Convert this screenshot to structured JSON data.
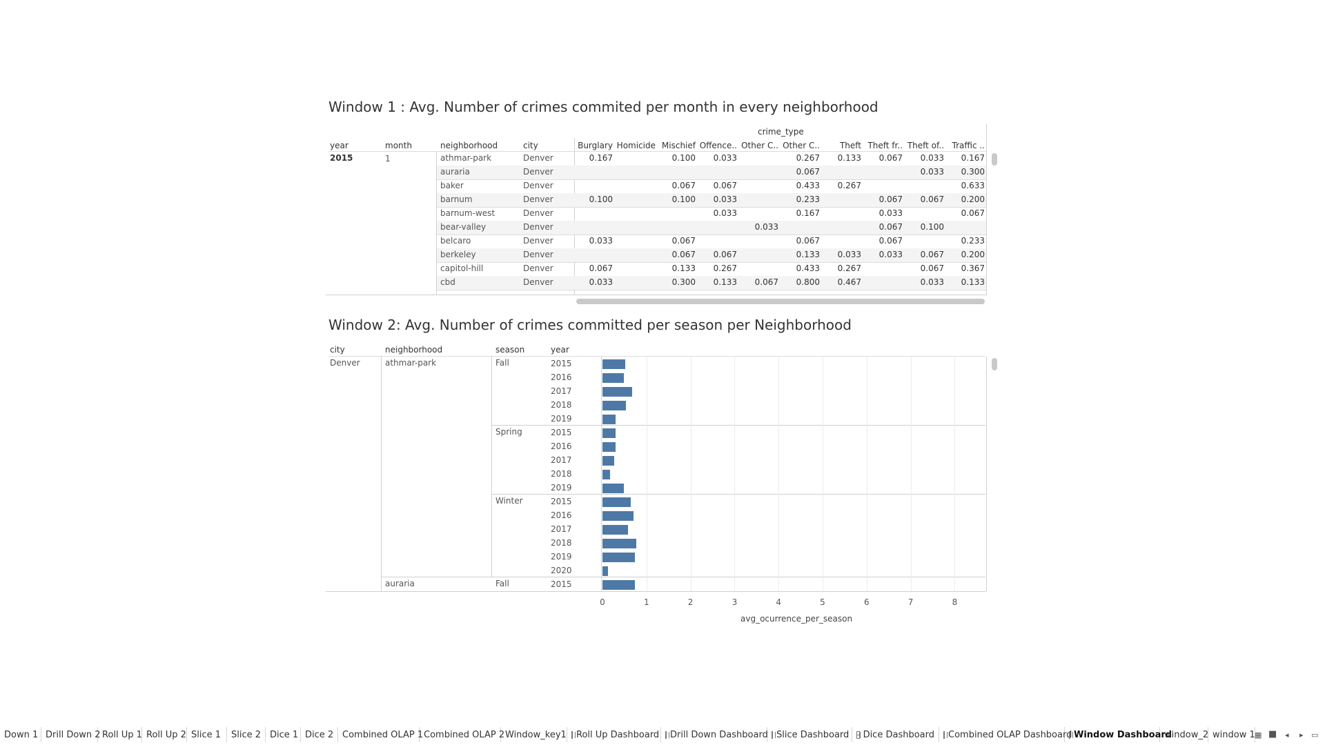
{
  "window1": {
    "title": "Window 1 : Avg. Number of crimes commited per month in every neighborhood",
    "column_group": "crime_type",
    "row_headers": [
      "year",
      "month",
      "neighborhood",
      "city"
    ],
    "crime_columns": [
      "Burglary",
      "Homicide",
      "Mischief",
      "Offence..",
      "Other C..",
      "Other C..",
      "Theft",
      "Theft fr..",
      "Theft of..",
      "Traffic .."
    ],
    "year": "2015",
    "month": "1",
    "rows": [
      {
        "neighborhood": "athmar-park",
        "city": "Denver",
        "values": [
          "0.167",
          "",
          "0.100",
          "0.033",
          "",
          "0.267",
          "0.133",
          "0.067",
          "0.033",
          "0.167"
        ]
      },
      {
        "neighborhood": "auraria",
        "city": "Denver",
        "values": [
          "",
          "",
          "",
          "",
          "",
          "0.067",
          "",
          "",
          "0.033",
          "0.300"
        ]
      },
      {
        "neighborhood": "baker",
        "city": "Denver",
        "values": [
          "",
          "",
          "0.067",
          "0.067",
          "",
          "0.433",
          "0.267",
          "",
          "",
          "0.633"
        ]
      },
      {
        "neighborhood": "barnum",
        "city": "Denver",
        "values": [
          "0.100",
          "",
          "0.100",
          "0.033",
          "",
          "0.233",
          "",
          "0.067",
          "0.067",
          "0.200"
        ]
      },
      {
        "neighborhood": "barnum-west",
        "city": "Denver",
        "values": [
          "",
          "",
          "",
          "0.033",
          "",
          "0.167",
          "",
          "0.033",
          "",
          "0.067"
        ]
      },
      {
        "neighborhood": "bear-valley",
        "city": "Denver",
        "values": [
          "",
          "",
          "",
          "",
          "0.033",
          "",
          "",
          "0.067",
          "0.100",
          ""
        ]
      },
      {
        "neighborhood": "belcaro",
        "city": "Denver",
        "values": [
          "0.033",
          "",
          "0.067",
          "",
          "",
          "0.067",
          "",
          "0.067",
          "",
          "0.233"
        ]
      },
      {
        "neighborhood": "berkeley",
        "city": "Denver",
        "values": [
          "",
          "",
          "0.067",
          "0.067",
          "",
          "0.133",
          "0.033",
          "0.033",
          "0.067",
          "0.200"
        ]
      },
      {
        "neighborhood": "capitol-hill",
        "city": "Denver",
        "values": [
          "0.067",
          "",
          "0.133",
          "0.267",
          "",
          "0.433",
          "0.267",
          "",
          "0.067",
          "0.367"
        ]
      },
      {
        "neighborhood": "cbd",
        "city": "Denver",
        "values": [
          "0.033",
          "",
          "0.300",
          "0.133",
          "0.067",
          "0.800",
          "0.467",
          "",
          "0.033",
          "0.133"
        ]
      }
    ]
  },
  "window2": {
    "title": "Window 2: Avg. Number of crimes committed per season per Neighborhood",
    "row_headers": [
      "city",
      "neighborhood",
      "season",
      "year"
    ],
    "city": "Denver",
    "neighborhoods": [
      "athmar-park",
      "auraria"
    ],
    "seasons": [
      "Fall",
      "Spring",
      "Winter",
      "Fall"
    ]
  },
  "chart_data": {
    "type": "bar",
    "orientation": "horizontal",
    "xlabel": "avg_ocurrence_per_season",
    "xlim": [
      0,
      8
    ],
    "xticks": [
      "0",
      "1",
      "2",
      "3",
      "4",
      "5",
      "6",
      "7",
      "8"
    ],
    "grid": true,
    "rows": [
      {
        "neighborhood": "athmar-park",
        "season": "Fall",
        "year": "2015",
        "value": 0.52
      },
      {
        "neighborhood": "athmar-park",
        "season": "Fall",
        "year": "2016",
        "value": 0.48
      },
      {
        "neighborhood": "athmar-park",
        "season": "Fall",
        "year": "2017",
        "value": 0.68
      },
      {
        "neighborhood": "athmar-park",
        "season": "Fall",
        "year": "2018",
        "value": 0.53
      },
      {
        "neighborhood": "athmar-park",
        "season": "Fall",
        "year": "2019",
        "value": 0.3
      },
      {
        "neighborhood": "athmar-park",
        "season": "Spring",
        "year": "2015",
        "value": 0.3
      },
      {
        "neighborhood": "athmar-park",
        "season": "Spring",
        "year": "2016",
        "value": 0.29
      },
      {
        "neighborhood": "athmar-park",
        "season": "Spring",
        "year": "2017",
        "value": 0.26
      },
      {
        "neighborhood": "athmar-park",
        "season": "Spring",
        "year": "2018",
        "value": 0.18
      },
      {
        "neighborhood": "athmar-park",
        "season": "Spring",
        "year": "2019",
        "value": 0.48
      },
      {
        "neighborhood": "athmar-park",
        "season": "Winter",
        "year": "2015",
        "value": 0.64
      },
      {
        "neighborhood": "athmar-park",
        "season": "Winter",
        "year": "2016",
        "value": 0.7
      },
      {
        "neighborhood": "athmar-park",
        "season": "Winter",
        "year": "2017",
        "value": 0.58
      },
      {
        "neighborhood": "athmar-park",
        "season": "Winter",
        "year": "2018",
        "value": 0.77
      },
      {
        "neighborhood": "athmar-park",
        "season": "Winter",
        "year": "2019",
        "value": 0.74
      },
      {
        "neighborhood": "athmar-park",
        "season": "Winter",
        "year": "2020",
        "value": 0.13
      },
      {
        "neighborhood": "auraria",
        "season": "Fall",
        "year": "2015",
        "value": 0.74
      }
    ]
  },
  "tabs": [
    "Down 1",
    "Drill Down 2",
    "Roll Up 1",
    "Roll Up 2",
    "Slice 1",
    "Slice 2",
    "Dice 1",
    "Dice 2",
    "Combined OLAP 1",
    "Combined OLAP 2",
    "Window_key1",
    "Roll Up Dashboard",
    "Drill Down Dashboard",
    "Slice Dashboard",
    "Dice Dashboard",
    "Combined OLAP Dashboard",
    "Window Dashboard",
    "window_2",
    "window 1"
  ],
  "active_tab": "Window Dashboard",
  "colors": {
    "bar": "#4e79a7",
    "band": "#f4f4f4"
  }
}
